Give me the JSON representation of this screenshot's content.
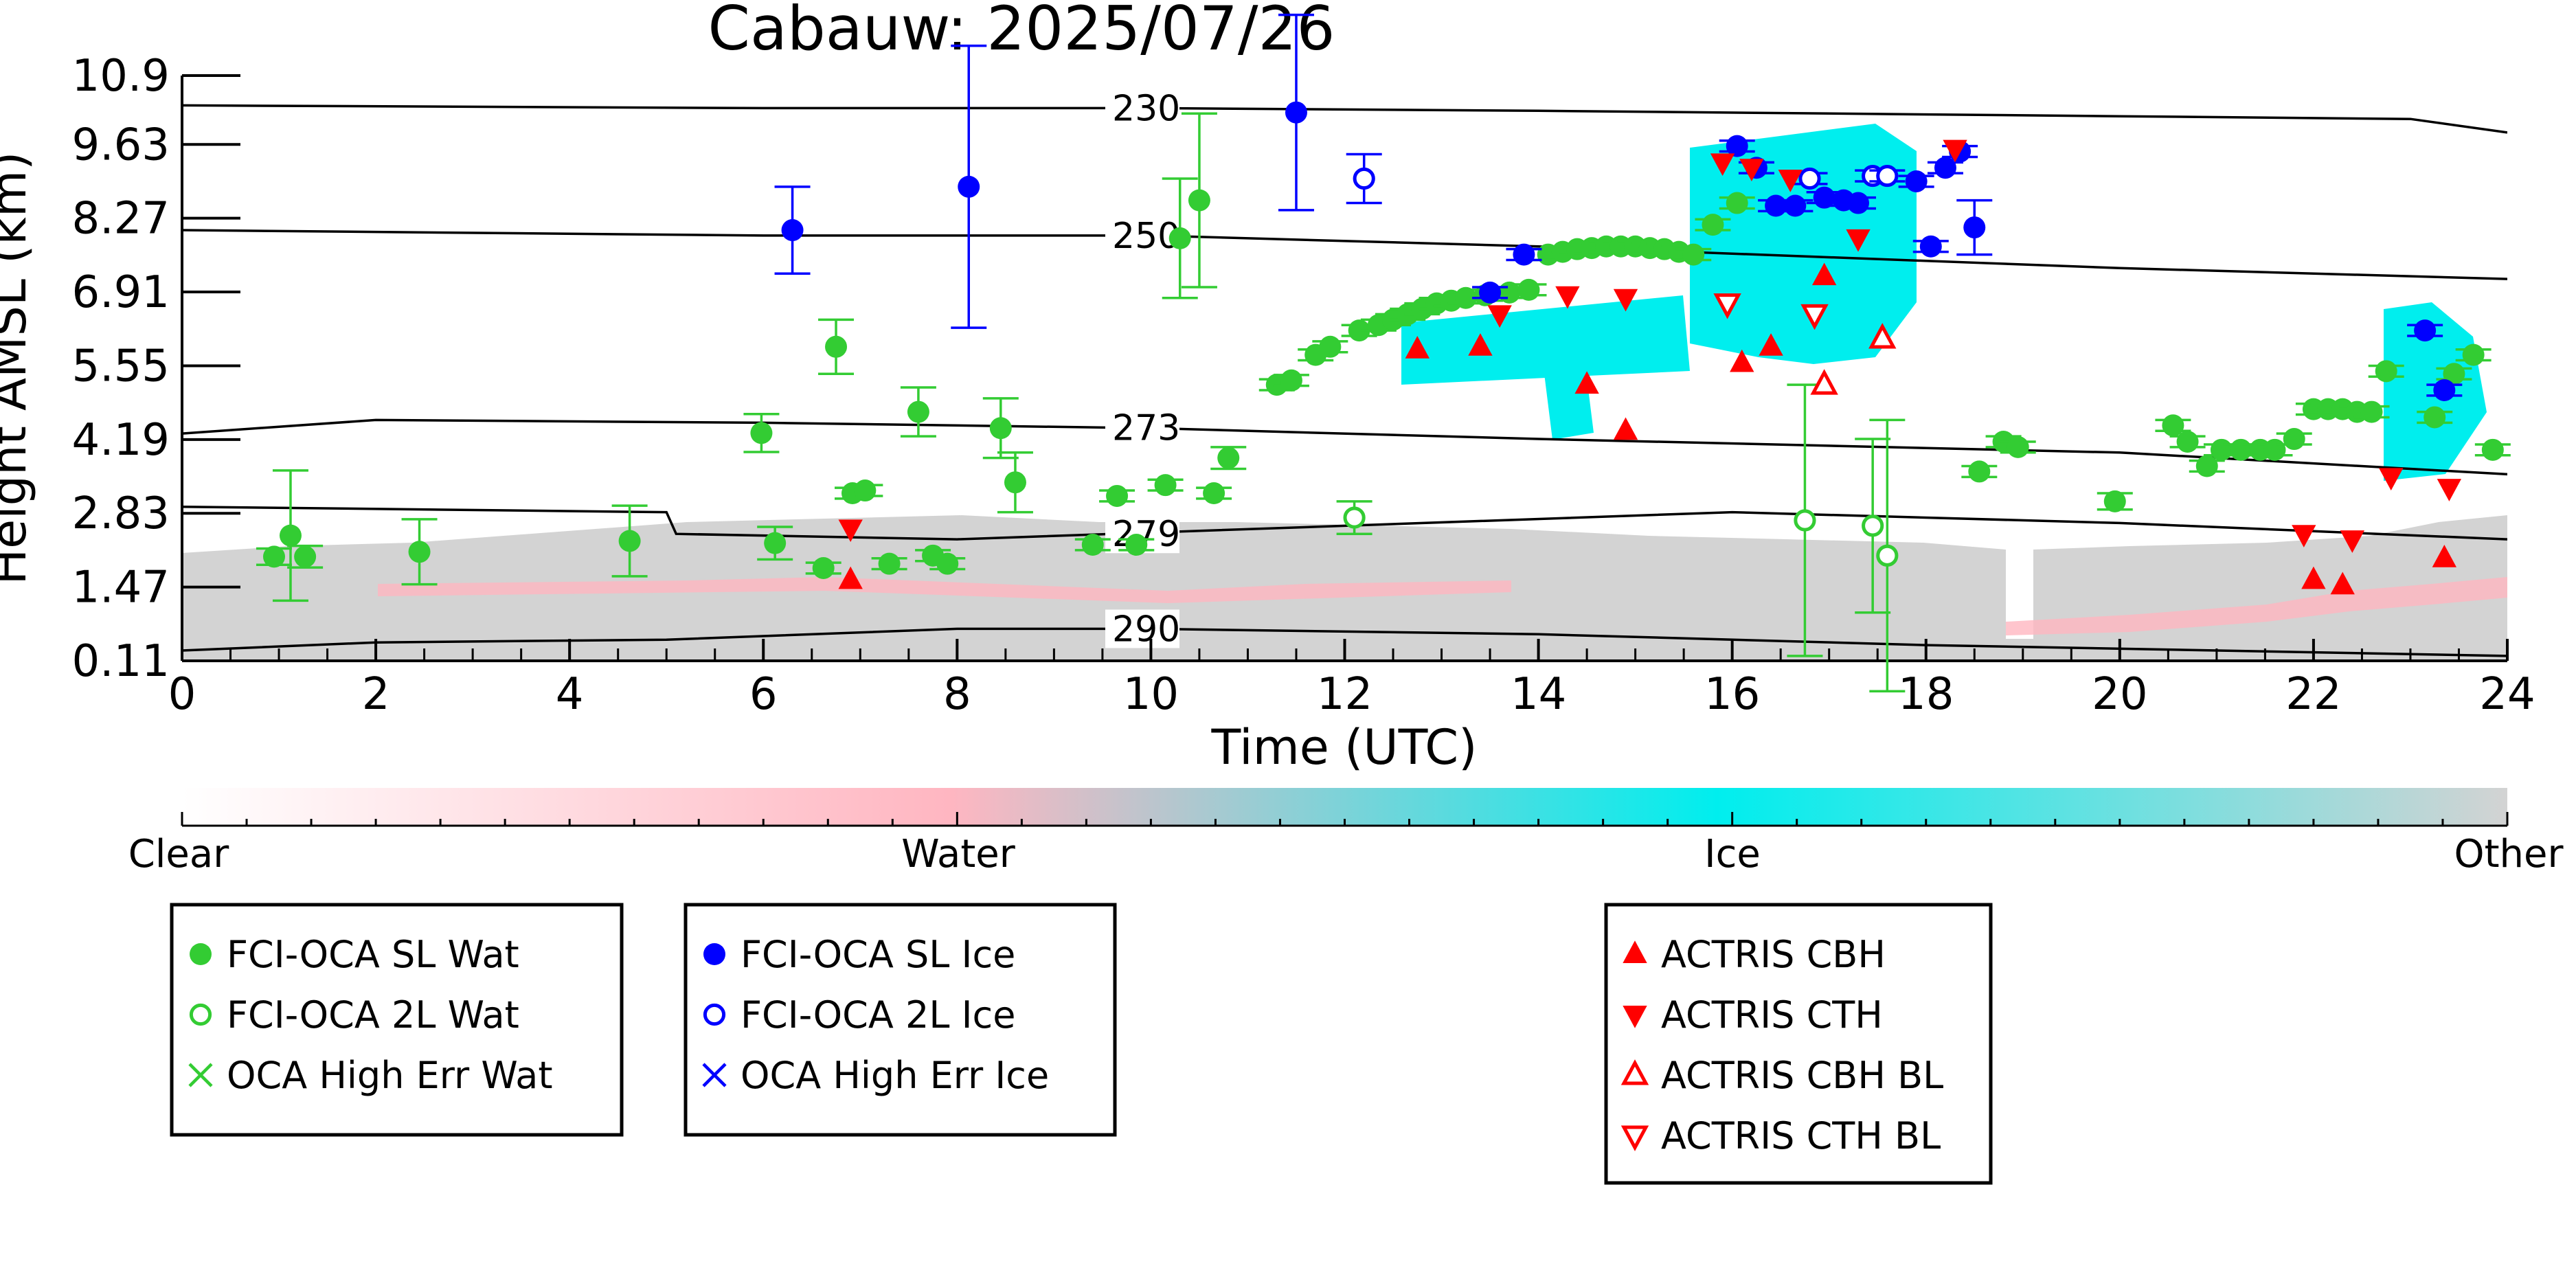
{
  "chart_data": {
    "type": "scatter",
    "title": "Cabauw: 2025/07/26",
    "xlabel": "Time (UTC)",
    "ylabel": "Height AMSL (km)",
    "xlim": [
      0,
      24
    ],
    "ylim": [
      0.11,
      10.9
    ],
    "x_ticks": [
      "0",
      "2",
      "4",
      "6",
      "8",
      "10",
      "12",
      "14",
      "16",
      "18",
      "20",
      "22",
      "24"
    ],
    "y_ticks": [
      "10.9",
      "9.63",
      "8.27",
      "6.91",
      "5.55",
      "4.19",
      "2.83",
      "1.47",
      "0.11"
    ],
    "background": "cloud phase classification time-height field (Clear / Water / Ice / Other)",
    "colorbar": {
      "labels": [
        "Clear",
        "Water",
        "Ice",
        "Other"
      ],
      "colors": [
        "#ffffff",
        "#ffb6c1",
        "#00eeee",
        "#d3d3d3"
      ]
    },
    "isotherms": [
      {
        "label": "230",
        "label_x": 9.6,
        "points": [
          [
            0,
            10.35
          ],
          [
            6,
            10.3
          ],
          [
            10,
            10.3
          ],
          [
            14,
            10.25
          ],
          [
            20,
            10.15
          ],
          [
            23,
            10.1
          ],
          [
            24,
            9.85
          ]
        ]
      },
      {
        "label": "250",
        "label_x": 9.6,
        "points": [
          [
            0,
            8.05
          ],
          [
            6,
            7.95
          ],
          [
            10,
            7.95
          ],
          [
            14,
            7.75
          ],
          [
            20,
            7.35
          ],
          [
            24,
            7.15
          ]
        ]
      },
      {
        "label": "273",
        "label_x": 9.6,
        "points": [
          [
            0,
            4.3
          ],
          [
            2,
            4.55
          ],
          [
            6,
            4.5
          ],
          [
            10,
            4.4
          ],
          [
            14,
            4.2
          ],
          [
            20,
            3.95
          ],
          [
            24,
            3.55
          ]
        ]
      },
      {
        "label": "279",
        "label_x": 9.6,
        "points": [
          [
            0,
            2.95
          ],
          [
            5,
            2.85
          ],
          [
            5.1,
            2.45
          ],
          [
            8,
            2.35
          ],
          [
            12,
            2.6
          ],
          [
            16,
            2.85
          ],
          [
            20,
            2.65
          ],
          [
            24,
            2.35
          ]
        ]
      },
      {
        "label": "290",
        "label_x": 9.6,
        "points": [
          [
            0,
            0.3
          ],
          [
            2,
            0.45
          ],
          [
            5,
            0.5
          ],
          [
            8,
            0.7
          ],
          [
            10,
            0.7
          ],
          [
            14,
            0.6
          ],
          [
            18,
            0.4
          ],
          [
            24,
            0.2
          ]
        ]
      }
    ],
    "series": [
      {
        "name": "FCI-OCA SL Wat",
        "color": "#33cc33",
        "marker": "filled-circle",
        "points": [
          {
            "x": 0.95,
            "y": 2.03,
            "err": 0.15
          },
          {
            "x": 1.12,
            "y": 2.42,
            "err": 1.2
          },
          {
            "x": 1.27,
            "y": 2.03,
            "err": 0.2
          },
          {
            "x": 2.45,
            "y": 2.12,
            "err": 0.6
          },
          {
            "x": 4.62,
            "y": 2.32,
            "err": 0.65
          },
          {
            "x": 5.98,
            "y": 4.31,
            "err": 0.35
          },
          {
            "x": 6.12,
            "y": 2.28,
            "err": 0.3
          },
          {
            "x": 6.62,
            "y": 1.82,
            "err": 0.1
          },
          {
            "x": 6.75,
            "y": 5.9,
            "err": 0.5
          },
          {
            "x": 6.92,
            "y": 3.2,
            "err": 0.1
          },
          {
            "x": 7.05,
            "y": 3.25,
            "err": 0.1
          },
          {
            "x": 7.3,
            "y": 1.9,
            "err": 0.1
          },
          {
            "x": 7.6,
            "y": 4.7,
            "err": 0.45
          },
          {
            "x": 7.75,
            "y": 2.05,
            "err": 0.1
          },
          {
            "x": 7.9,
            "y": 1.9,
            "err": 0.1
          },
          {
            "x": 8.45,
            "y": 4.4,
            "err": 0.55
          },
          {
            "x": 8.6,
            "y": 3.4,
            "err": 0.55
          },
          {
            "x": 9.4,
            "y": 2.25,
            "err": 0.1
          },
          {
            "x": 9.65,
            "y": 3.15,
            "err": 0.1
          },
          {
            "x": 9.85,
            "y": 2.25,
            "err": 0.1
          },
          {
            "x": 10.15,
            "y": 3.35,
            "err": 0.1
          },
          {
            "x": 10.3,
            "y": 7.9,
            "err": 1.1
          },
          {
            "x": 10.5,
            "y": 8.6,
            "err": 1.6
          },
          {
            "x": 10.65,
            "y": 3.2,
            "err": 0.1
          },
          {
            "x": 10.8,
            "y": 3.85,
            "err": 0.2
          },
          {
            "x": 11.3,
            "y": 5.2,
            "err": 0.1
          },
          {
            "x": 11.45,
            "y": 5.28,
            "err": 0.1
          },
          {
            "x": 11.7,
            "y": 5.75,
            "err": 0.1
          },
          {
            "x": 11.85,
            "y": 5.9,
            "err": 0.1
          },
          {
            "x": 12.15,
            "y": 6.2,
            "err": 0.1
          },
          {
            "x": 12.35,
            "y": 6.3,
            "err": 0.1
          },
          {
            "x": 12.5,
            "y": 6.4,
            "err": 0.1
          },
          {
            "x": 12.65,
            "y": 6.5,
            "err": 0.1
          },
          {
            "x": 12.8,
            "y": 6.6,
            "err": 0.1
          },
          {
            "x": 12.95,
            "y": 6.7,
            "err": 0.1
          },
          {
            "x": 13.1,
            "y": 6.75,
            "err": 0.1
          },
          {
            "x": 13.25,
            "y": 6.8,
            "err": 0.1
          },
          {
            "x": 13.45,
            "y": 6.85,
            "err": 0.1
          },
          {
            "x": 13.7,
            "y": 6.9,
            "err": 0.1
          },
          {
            "x": 13.9,
            "y": 6.95,
            "err": 0.1
          },
          {
            "x": 14.1,
            "y": 7.6,
            "err": 0.1
          },
          {
            "x": 14.25,
            "y": 7.65,
            "err": 0.1
          },
          {
            "x": 14.4,
            "y": 7.7,
            "err": 0.1
          },
          {
            "x": 14.55,
            "y": 7.72,
            "err": 0.1
          },
          {
            "x": 14.7,
            "y": 7.75,
            "err": 0.1
          },
          {
            "x": 14.85,
            "y": 7.75,
            "err": 0.1
          },
          {
            "x": 15.0,
            "y": 7.75,
            "err": 0.1
          },
          {
            "x": 15.15,
            "y": 7.72,
            "err": 0.1
          },
          {
            "x": 15.3,
            "y": 7.7,
            "err": 0.1
          },
          {
            "x": 15.45,
            "y": 7.65,
            "err": 0.1
          },
          {
            "x": 15.6,
            "y": 7.6,
            "err": 0.1
          },
          {
            "x": 15.8,
            "y": 8.15,
            "err": 0.1
          },
          {
            "x": 16.05,
            "y": 8.55,
            "err": 0.1
          },
          {
            "x": 18.55,
            "y": 3.6,
            "err": 0.1
          },
          {
            "x": 18.8,
            "y": 4.15,
            "err": 0.1
          },
          {
            "x": 18.95,
            "y": 4.05,
            "err": 0.1
          },
          {
            "x": 19.95,
            "y": 3.05,
            "err": 0.15
          },
          {
            "x": 20.55,
            "y": 4.45,
            "err": 0.1
          },
          {
            "x": 20.7,
            "y": 4.15,
            "err": 0.1
          },
          {
            "x": 20.9,
            "y": 3.7,
            "err": 0.1
          },
          {
            "x": 21.05,
            "y": 4.0,
            "err": 0.1
          },
          {
            "x": 21.25,
            "y": 4.0,
            "err": 0.1
          },
          {
            "x": 21.45,
            "y": 4.0,
            "err": 0.1
          },
          {
            "x": 21.6,
            "y": 4.0,
            "err": 0.1
          },
          {
            "x": 21.8,
            "y": 4.2,
            "err": 0.1
          },
          {
            "x": 22.0,
            "y": 4.75,
            "err": 0.1
          },
          {
            "x": 22.15,
            "y": 4.75,
            "err": 0.1
          },
          {
            "x": 22.3,
            "y": 4.75,
            "err": 0.1
          },
          {
            "x": 22.45,
            "y": 4.7,
            "err": 0.1
          },
          {
            "x": 22.6,
            "y": 4.7,
            "err": 0.1
          },
          {
            "x": 22.75,
            "y": 5.45,
            "err": 0.1
          },
          {
            "x": 23.25,
            "y": 4.6,
            "err": 0.1
          },
          {
            "x": 23.45,
            "y": 5.4,
            "err": 0.1
          },
          {
            "x": 23.65,
            "y": 5.75,
            "err": 0.1
          },
          {
            "x": 23.85,
            "y": 4.0,
            "err": 0.1
          }
        ]
      },
      {
        "name": "FCI-OCA 2L Wat",
        "color": "#33cc33",
        "marker": "open-circle",
        "points": [
          {
            "x": 12.1,
            "y": 2.75,
            "err": 0.3
          },
          {
            "x": 16.75,
            "y": 2.7,
            "err": 2.5
          },
          {
            "x": 17.45,
            "y": 2.6,
            "err": 1.6
          },
          {
            "x": 17.6,
            "y": 2.05,
            "err": 2.5
          }
        ]
      },
      {
        "name": "FCI-OCA SL Ice",
        "color": "#0000ff",
        "marker": "filled-circle",
        "points": [
          {
            "x": 6.3,
            "y": 8.05,
            "err": 0.8
          },
          {
            "x": 8.12,
            "y": 8.85,
            "err": 2.6
          },
          {
            "x": 11.5,
            "y": 10.22,
            "err": 1.8
          },
          {
            "x": 13.5,
            "y": 6.9,
            "err": 0.1
          },
          {
            "x": 13.85,
            "y": 7.6,
            "err": 0.1
          },
          {
            "x": 16.05,
            "y": 9.6,
            "err": 0.1
          },
          {
            "x": 16.25,
            "y": 9.2,
            "err": 0.1
          },
          {
            "x": 16.45,
            "y": 8.5,
            "err": 0.1
          },
          {
            "x": 16.65,
            "y": 8.5,
            "err": 0.1
          },
          {
            "x": 16.95,
            "y": 8.65,
            "err": 0.1
          },
          {
            "x": 17.15,
            "y": 8.6,
            "err": 0.1
          },
          {
            "x": 17.3,
            "y": 8.55,
            "err": 0.1
          },
          {
            "x": 17.9,
            "y": 8.95,
            "err": 0.1
          },
          {
            "x": 18.05,
            "y": 7.75,
            "err": 0.1
          },
          {
            "x": 18.2,
            "y": 9.2,
            "err": 0.1
          },
          {
            "x": 18.35,
            "y": 9.5,
            "err": 0.1
          },
          {
            "x": 18.5,
            "y": 8.1,
            "err": 0.5
          },
          {
            "x": 23.15,
            "y": 6.2,
            "err": 0.1
          },
          {
            "x": 23.35,
            "y": 5.1,
            "err": 0.1
          }
        ]
      },
      {
        "name": "FCI-OCA 2L Ice",
        "color": "#0000ff",
        "marker": "open-circle",
        "points": [
          {
            "x": 12.2,
            "y": 9.0,
            "err": 0.45
          },
          {
            "x": 16.8,
            "y": 9.0,
            "err": 0.1
          },
          {
            "x": 17.45,
            "y": 9.05,
            "err": 0.1
          },
          {
            "x": 17.6,
            "y": 9.05,
            "err": 0.1
          }
        ]
      },
      {
        "name": "ACTRIS CBH",
        "color": "#ff0000",
        "marker": "triangle-up",
        "points": [
          {
            "x": 6.9,
            "y": 1.6
          },
          {
            "x": 12.75,
            "y": 5.85
          },
          {
            "x": 13.4,
            "y": 5.9
          },
          {
            "x": 14.5,
            "y": 5.2
          },
          {
            "x": 14.9,
            "y": 4.35
          },
          {
            "x": 16.1,
            "y": 5.6
          },
          {
            "x": 16.4,
            "y": 5.9
          },
          {
            "x": 16.95,
            "y": 7.2
          },
          {
            "x": 22.0,
            "y": 1.6
          },
          {
            "x": 22.3,
            "y": 1.5
          },
          {
            "x": 23.35,
            "y": 2.0
          }
        ]
      },
      {
        "name": "ACTRIS CTH",
        "color": "#ff0000",
        "marker": "triangle-down",
        "points": [
          {
            "x": 6.9,
            "y": 2.55
          },
          {
            "x": 13.6,
            "y": 6.5
          },
          {
            "x": 14.3,
            "y": 6.85
          },
          {
            "x": 14.9,
            "y": 6.8
          },
          {
            "x": 15.9,
            "y": 9.3
          },
          {
            "x": 16.2,
            "y": 9.2
          },
          {
            "x": 16.6,
            "y": 9.0
          },
          {
            "x": 17.3,
            "y": 7.9
          },
          {
            "x": 18.3,
            "y": 9.55
          },
          {
            "x": 21.9,
            "y": 2.45
          },
          {
            "x": 22.4,
            "y": 2.35
          },
          {
            "x": 22.8,
            "y": 3.5
          },
          {
            "x": 23.4,
            "y": 3.3
          }
        ]
      },
      {
        "name": "ACTRIS CBH BL",
        "color": "#ff0000",
        "marker": "open-triangle-up",
        "points": [
          {
            "x": 16.95,
            "y": 5.2
          },
          {
            "x": 17.55,
            "y": 6.05
          }
        ]
      },
      {
        "name": "ACTRIS CTH BL",
        "color": "#ff0000",
        "marker": "open-triangle-down",
        "points": [
          {
            "x": 15.95,
            "y": 6.7
          },
          {
            "x": 16.85,
            "y": 6.5
          }
        ]
      }
    ],
    "legends": [
      {
        "entries": [
          {
            "label": "FCI-OCA SL Wat",
            "color": "#33cc33",
            "marker": "filled-circle"
          },
          {
            "label": "FCI-OCA 2L Wat",
            "color": "#33cc33",
            "marker": "open-circle"
          },
          {
            "label": "OCA High Err Wat",
            "color": "#33cc33",
            "marker": "x"
          }
        ]
      },
      {
        "entries": [
          {
            "label": "FCI-OCA SL Ice",
            "color": "#0000ff",
            "marker": "filled-circle"
          },
          {
            "label": "FCI-OCA 2L Ice",
            "color": "#0000ff",
            "marker": "open-circle"
          },
          {
            "label": "OCA High Err Ice",
            "color": "#0000ff",
            "marker": "x"
          }
        ]
      },
      {
        "entries": [
          {
            "label": "ACTRIS CBH",
            "color": "#ff0000",
            "marker": "triangle-up"
          },
          {
            "label": "ACTRIS CTH",
            "color": "#ff0000",
            "marker": "triangle-down"
          },
          {
            "label": "ACTRIS CBH BL",
            "color": "#ff0000",
            "marker": "open-triangle-up"
          },
          {
            "label": "ACTRIS CTH BL",
            "color": "#ff0000",
            "marker": "open-triangle-down"
          }
        ]
      }
    ]
  }
}
